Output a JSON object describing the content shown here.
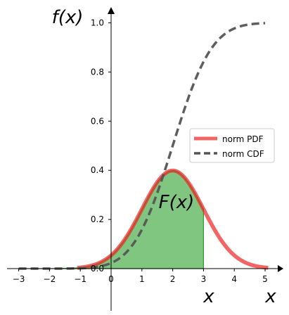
{
  "chart_data": {
    "type": "area",
    "xlim": [
      -3.35,
      5.6
    ],
    "ylim": [
      0,
      1.05
    ],
    "x_ticks": [
      -3,
      -2,
      -1,
      0,
      1,
      2,
      3,
      4,
      5
    ],
    "y_ticks": [
      0.0,
      0.2,
      0.4,
      0.6,
      0.8,
      1.0
    ],
    "x_tick_labels": [
      "−3",
      "−2",
      "−1",
      "0",
      "1",
      "2",
      "3",
      "4",
      "5"
    ],
    "y_tick_labels": [
      "0.0",
      "0.2",
      "0.4",
      "0.6",
      "0.8",
      "1.0"
    ],
    "grid": false,
    "distribution": {
      "mean": 2,
      "std": 1
    },
    "pdf_x_range": [
      -1.1,
      5.1
    ],
    "cdf_x_range": [
      -3,
      5
    ],
    "shaded_region": {
      "from": -3,
      "to": 3,
      "color": "#2ca02c"
    },
    "series": [
      {
        "name": "norm PDF",
        "function": "pdf",
        "color": "#ee2222",
        "style": "solid"
      },
      {
        "name": "norm CDF",
        "function": "cdf",
        "color": "#555555",
        "style": "dashed"
      }
    ],
    "legend_position": "center-right",
    "annotations": {
      "y_axis_label": "f(x)",
      "area_label": "F(x)",
      "x_marker_label": "x",
      "x_axis_label": "x"
    }
  }
}
